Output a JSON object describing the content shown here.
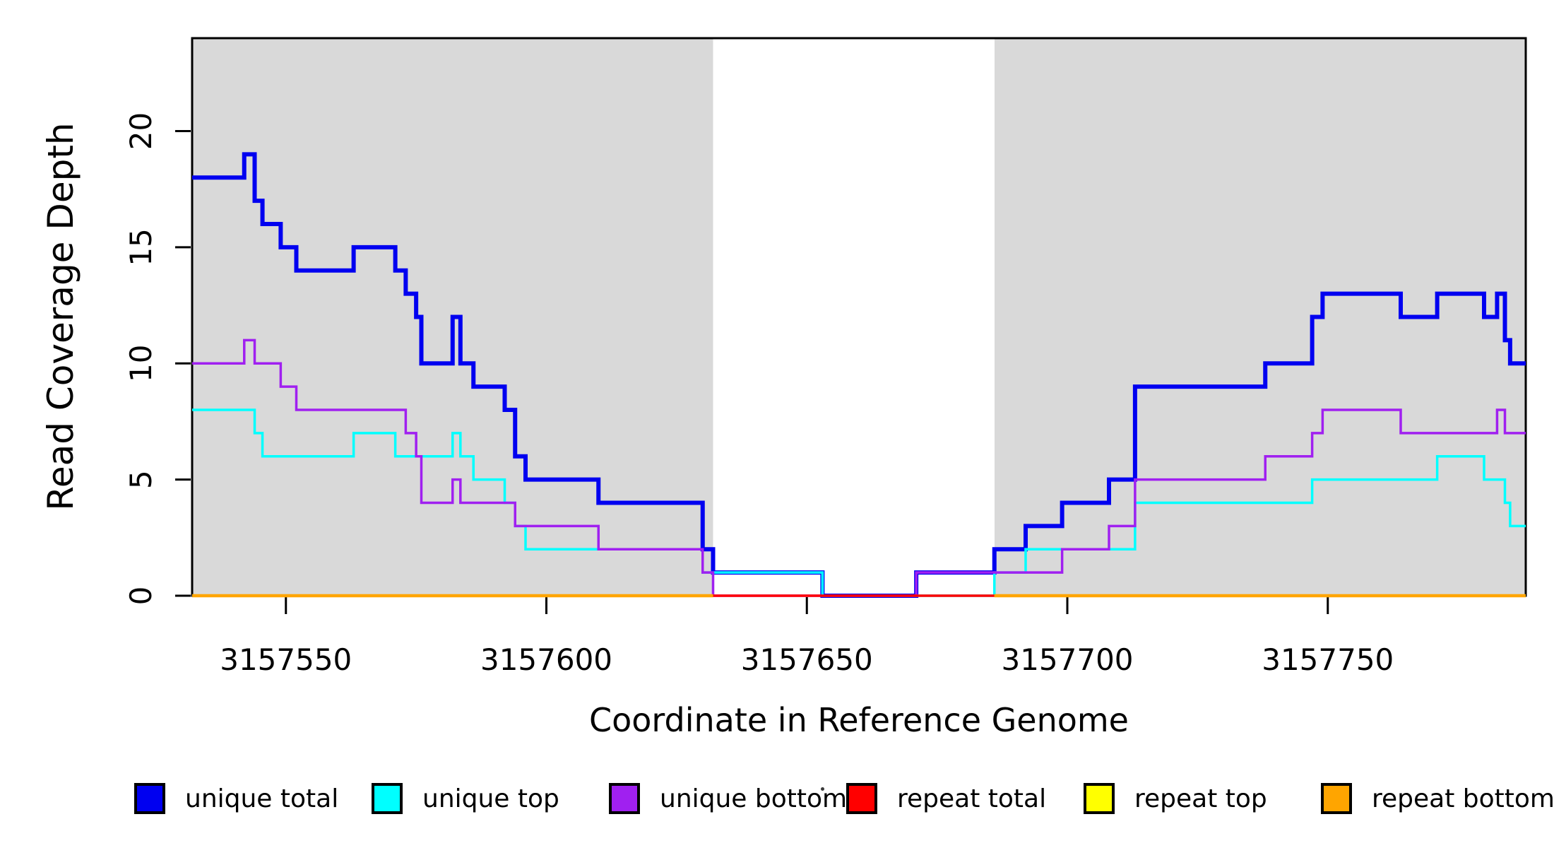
{
  "axes": {
    "x_title": "Coordinate in Reference Genome",
    "y_title": "Read Coverage Depth",
    "x_tick_labels": [
      "3157550",
      "3157600",
      "3157650",
      "3157700",
      "3157750"
    ],
    "y_tick_labels": [
      "0",
      "5",
      "10",
      "15",
      "20"
    ]
  },
  "legend": {
    "items": [
      {
        "label": "unique total",
        "color": "#0000f0"
      },
      {
        "label": "unique top",
        "color": "#00ffff"
      },
      {
        "label": "unique bottom",
        "color": "#a020f0"
      },
      {
        "label": "repeat total",
        "color": "#ff0000"
      },
      {
        "label": "repeat top",
        "color": "#ffff00"
      },
      {
        "label": "repeat bottom",
        "color": "#ffa500"
      }
    ]
  },
  "chart_data": {
    "type": "line",
    "line_style": "step-after",
    "title": "",
    "xlabel": "Coordinate in Reference Genome",
    "ylabel": "Read Coverage Depth",
    "xlim": [
      3157532,
      3157788
    ],
    "ylim": [
      0,
      24
    ],
    "xticks": [
      3157550,
      3157600,
      3157650,
      3157700,
      3157750
    ],
    "yticks": [
      0,
      5,
      10,
      15,
      20
    ],
    "grid": false,
    "legend_position": "bottom",
    "plot_background": "#ffffff",
    "shading": {
      "color": "#d9d9d9",
      "regions": [
        [
          3157532,
          3157632
        ],
        [
          3157686,
          3157788
        ]
      ]
    },
    "series": [
      {
        "name": "unique total",
        "color": "#0000f0",
        "line_width": 6,
        "segments": [
          {
            "x_end": 3157788,
            "points": [
              [
                3157532,
                18
              ],
              [
                3157542,
                19
              ],
              [
                3157544,
                17
              ],
              [
                3157545.5,
                16
              ],
              [
                3157549,
                15
              ],
              [
                3157552,
                14
              ],
              [
                3157563,
                15
              ],
              [
                3157571,
                14
              ],
              [
                3157573,
                13
              ],
              [
                3157575,
                12
              ],
              [
                3157576,
                10
              ],
              [
                3157582,
                12
              ],
              [
                3157583.5,
                10
              ],
              [
                3157586,
                9
              ],
              [
                3157592,
                8
              ],
              [
                3157594,
                6
              ],
              [
                3157596,
                5
              ],
              [
                3157610,
                4
              ],
              [
                3157630,
                2
              ],
              [
                3157632,
                1
              ],
              [
                3157653,
                0
              ],
              [
                3157671,
                1
              ],
              [
                3157686,
                2
              ],
              [
                3157692,
                3
              ],
              [
                3157699,
                4
              ],
              [
                3157708,
                5
              ],
              [
                3157713,
                9
              ],
              [
                3157738,
                10
              ],
              [
                3157747,
                12
              ],
              [
                3157749,
                13
              ],
              [
                3157764,
                12
              ],
              [
                3157771,
                13
              ],
              [
                3157780,
                12
              ],
              [
                3157782.5,
                13
              ],
              [
                3157784,
                11
              ],
              [
                3157785,
                10
              ]
            ]
          }
        ]
      },
      {
        "name": "unique top",
        "color": "#00ffff",
        "line_width": 3.5,
        "segments": [
          {
            "x_end": 3157788,
            "points": [
              [
                3157532,
                8
              ],
              [
                3157544,
                7
              ],
              [
                3157545.5,
                6
              ],
              [
                3157563,
                7
              ],
              [
                3157571,
                6
              ],
              [
                3157582,
                7
              ],
              [
                3157583.5,
                6
              ],
              [
                3157586,
                5
              ],
              [
                3157592,
                4
              ],
              [
                3157594,
                3
              ],
              [
                3157596,
                2
              ],
              [
                3157630,
                1
              ],
              [
                3157653,
                0
              ],
              [
                3157686,
                1
              ],
              [
                3157692,
                2
              ],
              [
                3157713,
                4
              ],
              [
                3157747,
                5
              ],
              [
                3157771,
                6
              ],
              [
                3157780,
                5
              ],
              [
                3157784,
                4
              ],
              [
                3157785,
                3
              ]
            ]
          }
        ]
      },
      {
        "name": "unique bottom",
        "color": "#a020f0",
        "line_width": 3.5,
        "segments": [
          {
            "x_end": 3157788,
            "points": [
              [
                3157532,
                10
              ],
              [
                3157542,
                11
              ],
              [
                3157544,
                10
              ],
              [
                3157549,
                9
              ],
              [
                3157552,
                8
              ],
              [
                3157573,
                7
              ],
              [
                3157575,
                6
              ],
              [
                3157576,
                4
              ],
              [
                3157582,
                5
              ],
              [
                3157583.5,
                4
              ],
              [
                3157594,
                3
              ],
              [
                3157610,
                2
              ],
              [
                3157630,
                1
              ],
              [
                3157632,
                0
              ],
              [
                3157671,
                1
              ],
              [
                3157699,
                2
              ],
              [
                3157708,
                3
              ],
              [
                3157713,
                5
              ],
              [
                3157738,
                6
              ],
              [
                3157747,
                7
              ],
              [
                3157749,
                8
              ],
              [
                3157764,
                7
              ],
              [
                3157782.5,
                8
              ],
              [
                3157784,
                7
              ]
            ]
          }
        ]
      },
      {
        "name": "repeat total",
        "color": "#ff0000",
        "line_width": 3.5,
        "segments": [
          {
            "x_end": 3157788,
            "points": [
              [
                3157532,
                0
              ]
            ]
          }
        ]
      },
      {
        "name": "repeat top",
        "color": "#ffff00",
        "line_width": 3.5,
        "segments": [
          {
            "x_end": 3157632,
            "points": [
              [
                3157532,
                0
              ]
            ]
          },
          {
            "x_end": 3157788,
            "points": [
              [
                3157686,
                0
              ]
            ]
          }
        ]
      },
      {
        "name": "repeat bottom",
        "color": "#ffa500",
        "line_width": 4.5,
        "segments": [
          {
            "x_end": 3157632,
            "points": [
              [
                3157532,
                0
              ]
            ]
          },
          {
            "x_end": 3157788,
            "points": [
              [
                3157686,
                0
              ]
            ]
          }
        ]
      }
    ]
  }
}
